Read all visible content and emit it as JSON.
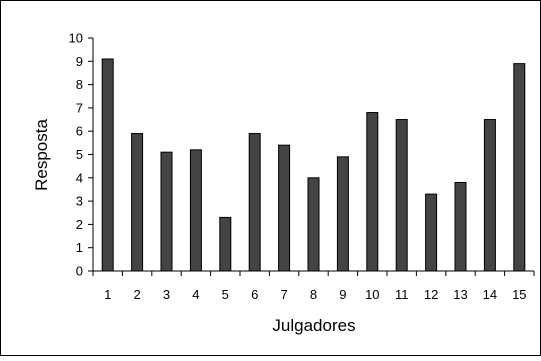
{
  "chart_data": {
    "type": "bar",
    "title": "",
    "xlabel": "Julgadores",
    "ylabel": "Resposta",
    "categories": [
      "1",
      "2",
      "3",
      "4",
      "5",
      "6",
      "7",
      "8",
      "9",
      "10",
      "11",
      "12",
      "13",
      "14",
      "15"
    ],
    "values": [
      9.1,
      5.9,
      5.1,
      5.2,
      2.3,
      5.9,
      5.4,
      4.0,
      4.9,
      6.8,
      6.5,
      3.3,
      3.8,
      6.5,
      8.9
    ],
    "ylim": [
      0,
      10
    ],
    "yticks": [
      "0",
      "1",
      "2",
      "3",
      "4",
      "5",
      "6",
      "7",
      "8",
      "9",
      "10"
    ],
    "grid": false,
    "legend": "none",
    "colors": {
      "bar_fill": "#444444",
      "bar_stroke": "#000000",
      "axis": "#000000"
    }
  }
}
